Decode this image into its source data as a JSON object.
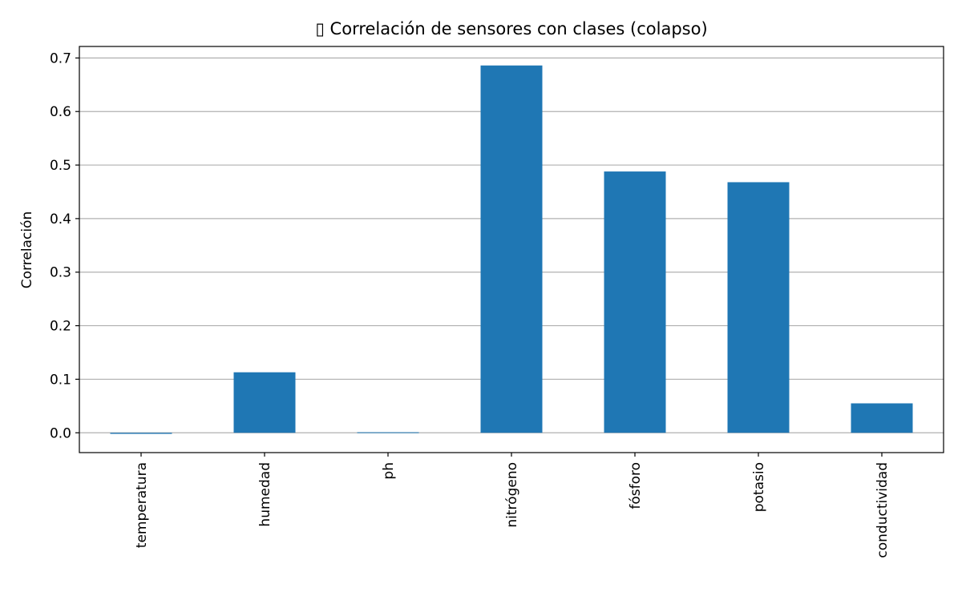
{
  "chart_data": {
    "type": "bar",
    "title": "▯ Correlación de sensores con clases (colapso)",
    "xlabel": "",
    "ylabel": "Correlación",
    "categories": [
      "temperatura",
      "humedad",
      "ph",
      "nitrógeno",
      "fósforo",
      "potasio",
      "conductividad"
    ],
    "values": [
      -0.002,
      0.113,
      0.001,
      0.686,
      0.488,
      0.468,
      0.055
    ],
    "ylim": [
      -0.037,
      0.7215
    ],
    "yticks": [
      0.0,
      0.1,
      0.2,
      0.3,
      0.4,
      0.5,
      0.6,
      0.7
    ],
    "ytick_labels": [
      "0.0",
      "0.1",
      "0.2",
      "0.3",
      "0.4",
      "0.5",
      "0.6",
      "0.7"
    ],
    "grid": "y",
    "legend": "none",
    "bar_color": "#1f77b4",
    "grid_color": "#b0b0b0",
    "axis_color": "#000000"
  }
}
